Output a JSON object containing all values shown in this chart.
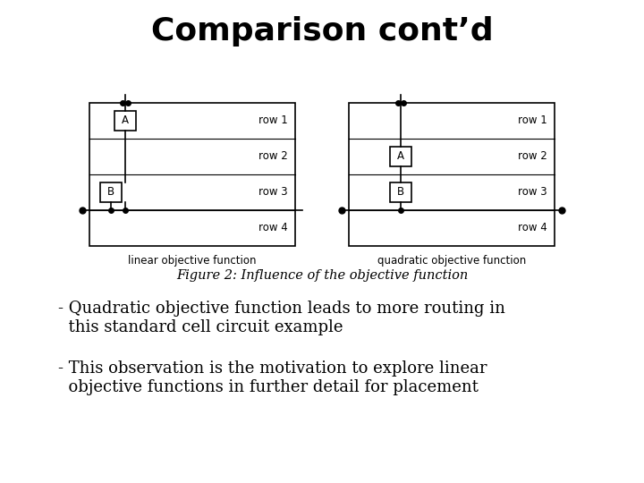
{
  "title": "Comparison cont’d",
  "title_fontsize": 26,
  "background_color": "#ffffff",
  "bullet1_line1": "- Quadratic objective function leads to more routing in",
  "bullet1_line2": "  this standard cell circuit example",
  "bullet2_line1": "- This observation is the motivation to explore linear",
  "bullet2_line2": "  objective functions in further detail for placement",
  "caption_label": "Figure 2: Influence of the objective function",
  "label_linear": "linear objective function",
  "label_quadratic": "quadratic objective function",
  "text_fontsize": 13,
  "caption_fontsize": 10.5
}
